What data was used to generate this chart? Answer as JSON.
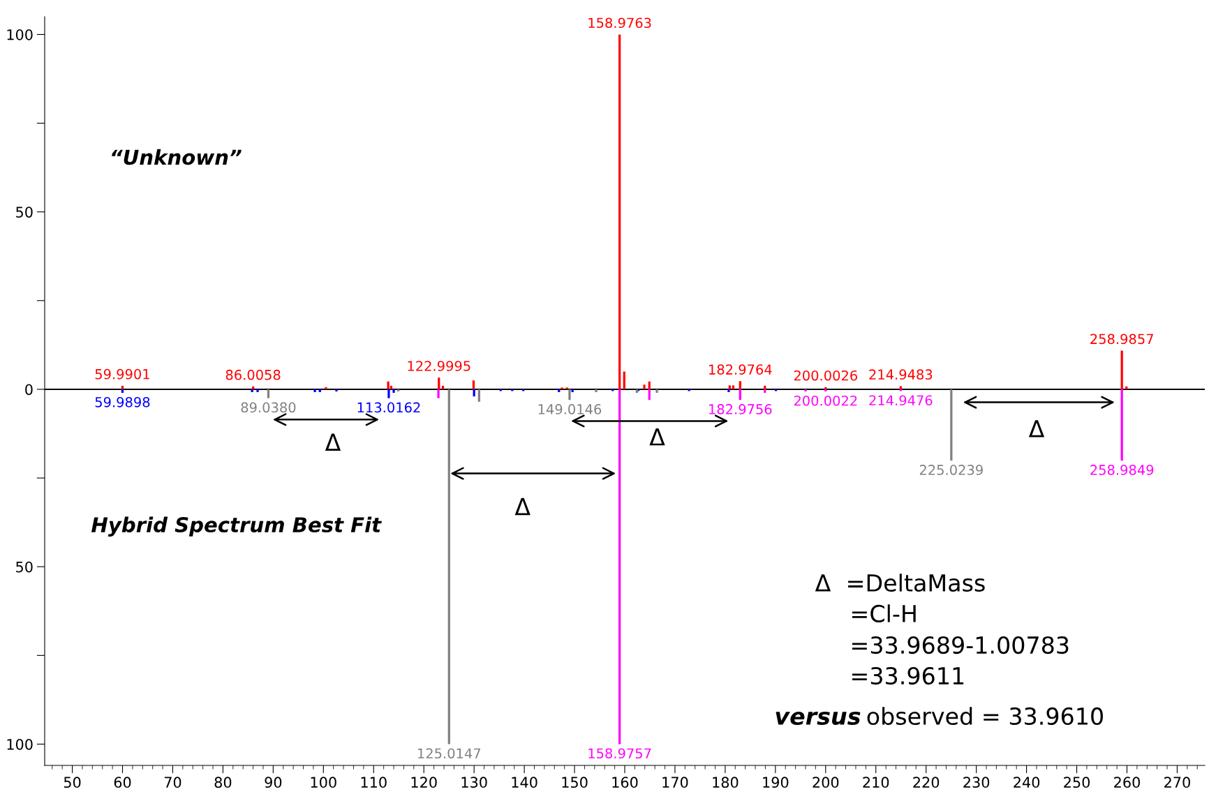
{
  "chart_data": {
    "type": "bar",
    "series": [
      {
        "color": "#ff0000",
        "x": [
          59.9901,
          86.0058,
          100.5,
          112.9,
          113.5,
          122.9995,
          123.8,
          129.9,
          147.5,
          148.5,
          158.9763,
          159.9,
          163.9,
          164.9,
          180.9,
          181.6,
          182.9764,
          187.9,
          200.0026,
          214.9483,
          258.9857,
          259.9
        ],
        "values": [
          1.0,
          0.8,
          0.6,
          2.2,
          1.0,
          3.3,
          1.0,
          2.5,
          0.5,
          0.5,
          100,
          5.0,
          1.3,
          2.2,
          1.1,
          1.1,
          2.3,
          1.0,
          0.6,
          0.9,
          10.9,
          0.8
        ]
      },
      {
        "color": "#0000ff",
        "x": [
          59.9898,
          85.8,
          86.9,
          98.3,
          99.3,
          102.6,
          113.0162,
          114.0,
          130.0,
          135.3,
          137.6,
          139.8,
          146.9,
          149.6,
          157.6,
          162.7,
          172.8,
          180.7,
          190.1
        ],
        "values": [
          -1.0,
          -0.8,
          -0.8,
          -0.8,
          -0.8,
          -0.6,
          -2.5,
          -1.0,
          -2.0,
          -0.5,
          -0.5,
          -0.5,
          -0.8,
          -0.8,
          -0.5,
          -0.5,
          -0.5,
          -0.8,
          -0.5
        ]
      },
      {
        "color": "#808080",
        "x": [
          89.038,
          114.9,
          125.0147,
          131.0,
          149.0146,
          154.3,
          162.4,
          166.4,
          225.0239
        ],
        "values": [
          -2.5,
          -0.6,
          -100,
          -3.5,
          -3.0,
          -0.8,
          -1.0,
          -1.0,
          -20.1
        ]
      },
      {
        "color": "#ff00ff",
        "x": [
          122.9,
          158.9757,
          164.9,
          182.9756,
          187.9,
          196.0,
          200.0022,
          214.9476,
          258.9849
        ],
        "values": [
          -2.5,
          -100,
          -3.0,
          -3.0,
          -1.0,
          -0.6,
          -0.6,
          -0.5,
          -20.1
        ]
      }
    ],
    "xlim": [
      44.5,
      275.5
    ],
    "xticks": [
      50,
      60,
      70,
      80,
      90,
      100,
      110,
      120,
      130,
      140,
      150,
      160,
      170,
      180,
      190,
      200,
      210,
      220,
      230,
      240,
      250,
      260,
      270
    ],
    "ylim": [
      -106,
      105
    ],
    "yticks": [
      {
        "value": -100,
        "label": "100"
      },
      {
        "value": -75,
        "label": null
      },
      {
        "value": -50,
        "label": "50"
      },
      {
        "value": -25,
        "label": null
      },
      0,
      {
        "value": 25,
        "label": null
      },
      50,
      {
        "value": 75,
        "label": null
      },
      100
    ],
    "ref_lines": [
      {
        "axis": "y",
        "value": 0,
        "color": "#000000"
      }
    ],
    "grid": false,
    "legend": false,
    "annotations": [
      {
        "text": "59.9901",
        "x": 59.9901,
        "y": 1.0
      },
      {
        "text": "86.0058",
        "x": 86.0058,
        "y": 0.8
      },
      {
        "text": "122.9995",
        "x": 122.9995,
        "y": 3.3
      },
      {
        "text": "158.9763",
        "x": 158.9763,
        "y": 100
      },
      {
        "text": "182.9764",
        "x": 182.9764,
        "y": 2.3
      },
      {
        "text": "200.0026",
        "x": 200.0026,
        "y": 0.6
      },
      {
        "text": "214.9483",
        "x": 214.9483,
        "y": 0.9
      },
      {
        "text": "258.9857",
        "x": 258.9857,
        "y": 10.9
      },
      {
        "text": "59.9898",
        "x": 59.9898,
        "y": -1.0
      },
      {
        "text": "113.0162",
        "x": 113.0162,
        "y": -2.5
      },
      {
        "text": "89.0380",
        "x": 89.038,
        "y": -2.5
      },
      {
        "text": "125.0147",
        "x": 125.0147,
        "y": -100
      },
      {
        "text": "149.0146",
        "x": 149.0146,
        "y": -3.0
      },
      {
        "text": "225.0239",
        "x": 225.0239,
        "y": -20.1
      },
      {
        "text": "158.9757",
        "x": 158.9757,
        "y": -100
      },
      {
        "text": "182.9756",
        "x": 182.9756,
        "y": -3.0
      },
      {
        "text": "200.0022",
        "x": 200.0022,
        "y": -0.6
      },
      {
        "text": "214.9476",
        "x": 214.9476,
        "y": -0.5
      },
      {
        "text": "258.9849",
        "x": 258.9849,
        "y": -20.1
      },
      "“Unknown”",
      "Hybrid Spectrum Best Fit",
      "Δ",
      "Δ",
      "Δ",
      "Δ",
      "Δ  =DeltaMass",
      "=Cl-H",
      "=33.9689-1.00783",
      "=33.9611",
      "versus",
      "observed = 33.9610"
    ]
  }
}
